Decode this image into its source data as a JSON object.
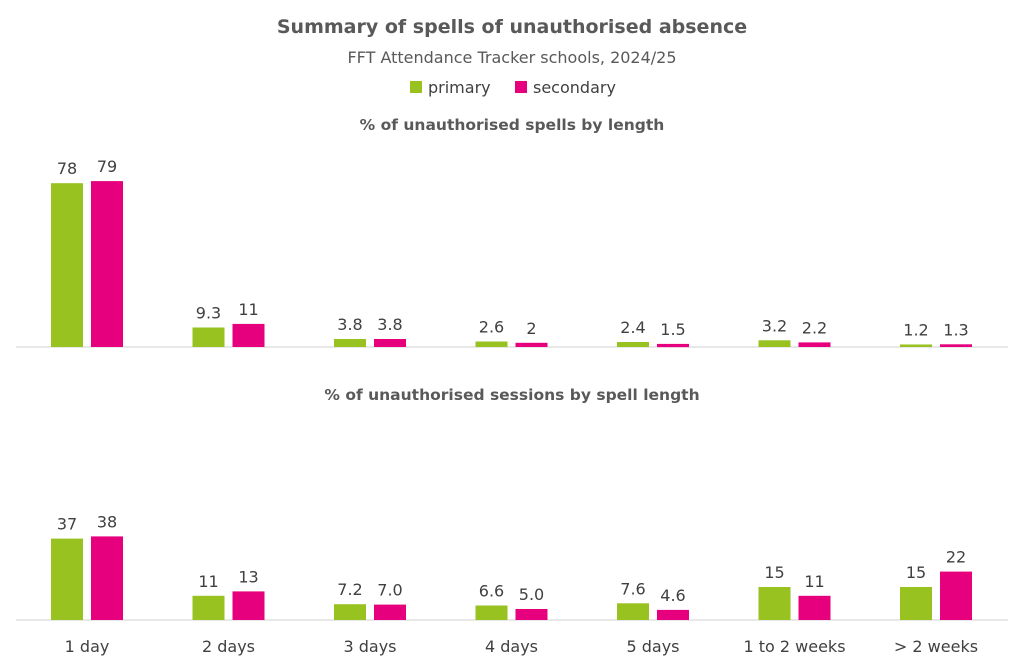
{
  "chart_data": {
    "type": "bar",
    "title": "Summary of spells of unauthorised absence",
    "subtitle": "FFT Attendance Tracker schools, 2024/25",
    "legend": {
      "placement": "top-center",
      "entries": [
        {
          "name": "primary",
          "color": "#97c21f"
        },
        {
          "name": "secondary",
          "color": "#e6007e"
        }
      ]
    },
    "categories": [
      "1 day",
      "2 days",
      "3 days",
      "4 days",
      "5 days",
      "1 to 2 weeks",
      "> 2 weeks"
    ],
    "panels": [
      {
        "title": "% of unauthorised spells by length",
        "ylim": [
          0,
          88
        ],
        "grid": false,
        "series": [
          {
            "name": "primary",
            "values": [
              78,
              9.3,
              3.8,
              2.6,
              2.4,
              3.2,
              1.2
            ],
            "labels": [
              "78",
              "9.3",
              "3.8",
              "2.6",
              "2.4",
              "3.2",
              "1.2"
            ]
          },
          {
            "name": "secondary",
            "values": [
              79,
              11,
              3.8,
              2,
              1.5,
              2.2,
              1.3
            ],
            "labels": [
              "79",
              "11",
              "3.8",
              "2",
              "1.5",
              "2.2",
              "1.3"
            ]
          }
        ]
      },
      {
        "title": "% of unauthorised sessions by spell length",
        "ylim": [
          0,
          52
        ],
        "grid": false,
        "series": [
          {
            "name": "primary",
            "values": [
              37,
              11,
              7.2,
              6.6,
              7.6,
              15,
              15
            ],
            "labels": [
              "37",
              "11",
              "7.2",
              "6.6",
              "7.6",
              "15",
              "15"
            ]
          },
          {
            "name": "secondary",
            "values": [
              38,
              13,
              7.0,
              5.0,
              4.6,
              11,
              22
            ],
            "labels": [
              "38",
              "13",
              "7.0",
              "5.0",
              "4.6",
              "11",
              "22"
            ]
          }
        ]
      }
    ]
  }
}
